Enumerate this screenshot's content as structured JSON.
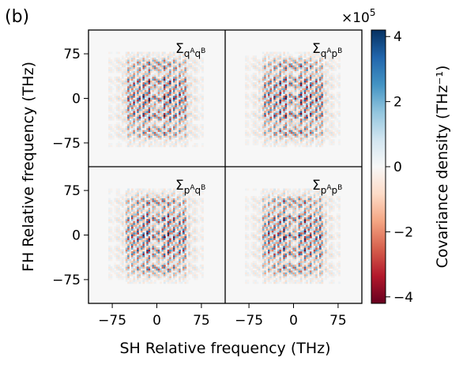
{
  "chart_data": {
    "type": "heatmap",
    "panel_label": "(b)",
    "xlabel": "SH Relative frequency (THz)",
    "ylabel": "FH Relative frequency (THz)",
    "xlim": [
      -115,
      115
    ],
    "ylim": [
      -115,
      115
    ],
    "x_ticks": [
      {
        "value": -75,
        "label": "−75"
      },
      {
        "value": 0,
        "label": "0"
      },
      {
        "value": 75,
        "label": "75"
      }
    ],
    "y_ticks": [
      {
        "value": 75,
        "label": "75"
      },
      {
        "value": 0,
        "label": "0"
      },
      {
        "value": -75,
        "label": "−75"
      }
    ],
    "panels": [
      {
        "row": 0,
        "col": 0,
        "label_base": "Σ",
        "sub_a": "q",
        "sup_a": "A",
        "sub_b": "q",
        "sup_b": "B"
      },
      {
        "row": 0,
        "col": 1,
        "label_base": "Σ",
        "sub_a": "q",
        "sup_a": "A",
        "sub_b": "p",
        "sup_b": "B"
      },
      {
        "row": 1,
        "col": 0,
        "label_base": "Σ",
        "sub_a": "p",
        "sup_a": "A",
        "sub_b": "q",
        "sup_b": "B"
      },
      {
        "row": 1,
        "col": 1,
        "label_base": "Σ",
        "sub_a": "p",
        "sup_a": "A",
        "sub_b": "p",
        "sup_b": "B"
      }
    ],
    "colorbar": {
      "label": "Covariance density (THz⁻¹)",
      "scale_text": "×10",
      "scale_exp": "5",
      "range": [
        -4.2,
        4.2
      ],
      "ticks": [
        {
          "value": 4,
          "label": "4"
        },
        {
          "value": 2,
          "label": "2"
        },
        {
          "value": 0,
          "label": "0"
        },
        {
          "value": -2,
          "label": "−2"
        },
        {
          "value": -4,
          "label": "−4"
        }
      ],
      "colormap": "RdBu_r",
      "colors": [
        "#67001f",
        "#b2182b",
        "#d6604d",
        "#f4a582",
        "#fddbc7",
        "#f7f7f7",
        "#d1e5f0",
        "#92c5de",
        "#4393c3",
        "#2166ac",
        "#053061"
      ]
    },
    "pattern": {
      "horizontal_bands_thz": [
        -56,
        -28,
        0,
        28,
        56
      ],
      "vertical_bands_thz": [
        -42,
        -18,
        18,
        42
      ],
      "fringe_period_thz": 8,
      "extent_thz": 80
    }
  }
}
